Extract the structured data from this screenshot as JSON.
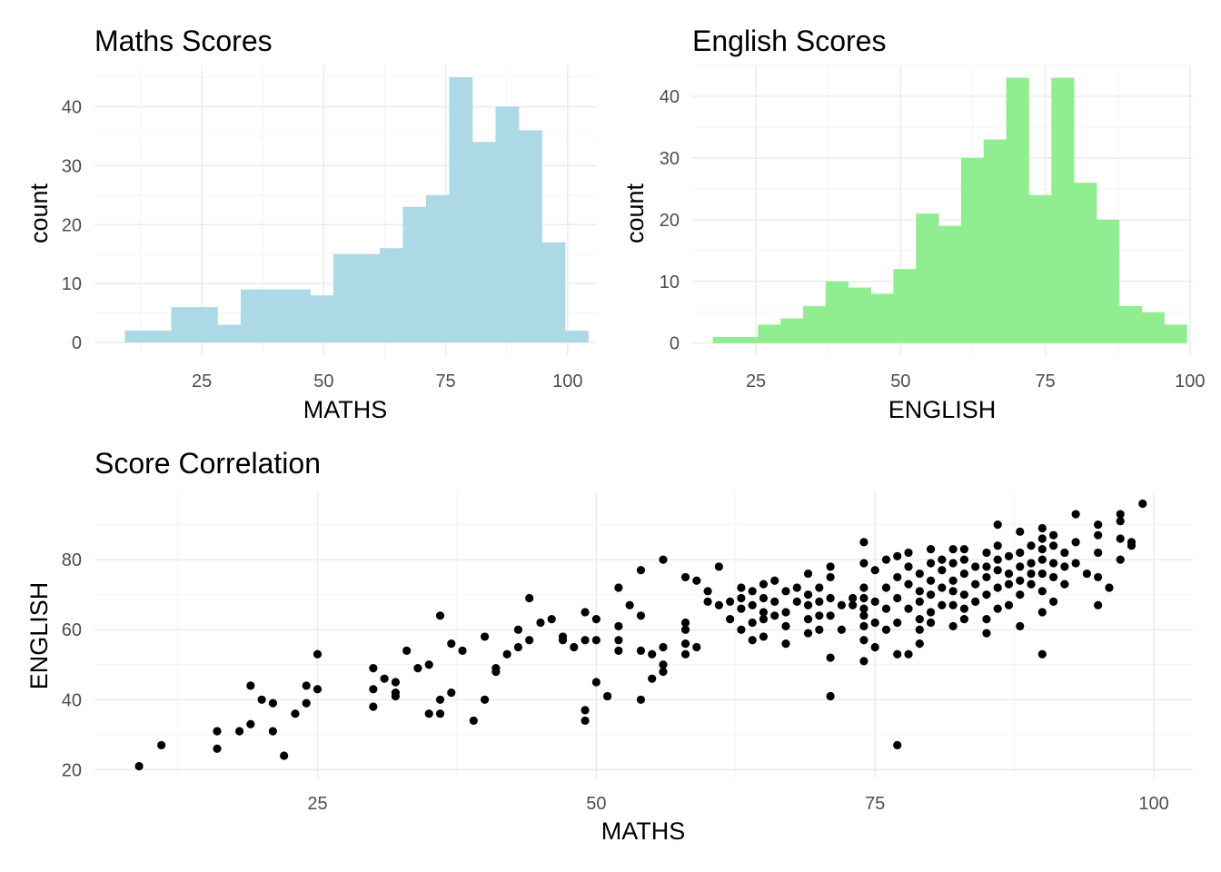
{
  "chart_data": [
    {
      "type": "bar",
      "title": "Maths Scores",
      "xlabel": "MATHS",
      "ylabel": "count",
      "fill": "#ADD8E6",
      "xlim": [
        3,
        106
      ],
      "ylim": [
        -2.3,
        47
      ],
      "xticks": [
        25,
        50,
        75,
        100
      ],
      "yticks": [
        0,
        10,
        20,
        30,
        40
      ],
      "grid": true,
      "bin_width": 4.75,
      "bin_centers": [
        11.6,
        16.35,
        21.1,
        25.85,
        30.6,
        35.35,
        40.1,
        44.85,
        49.6,
        54.35,
        59.1,
        63.85,
        68.6,
        73.35,
        78.1,
        82.85,
        87.6,
        92.35,
        97.1,
        101.85
      ],
      "values": [
        2,
        2,
        6,
        6,
        3,
        9,
        9,
        9,
        8,
        15,
        15,
        16,
        23,
        25,
        45,
        34,
        40,
        36,
        17,
        2
      ]
    },
    {
      "type": "bar",
      "title": "English Scores",
      "xlabel": "ENGLISH",
      "ylabel": "count",
      "fill": "#90EE90",
      "xlim": [
        14,
        100.5
      ],
      "ylim": [
        -2.1,
        45
      ],
      "xticks": [
        25,
        50,
        75,
        100
      ],
      "yticks": [
        0,
        10,
        20,
        30,
        40
      ],
      "grid": true,
      "bin_width": 3.9,
      "bin_centers": [
        19.5,
        23.4,
        27.3,
        31.2,
        35.1,
        39.0,
        42.9,
        46.8,
        50.7,
        54.6,
        58.5,
        62.4,
        66.3,
        70.2,
        74.1,
        78.0,
        81.9,
        85.8,
        89.7,
        93.6,
        97.5
      ],
      "values": [
        1,
        1,
        3,
        4,
        6,
        10,
        9,
        8,
        12,
        21,
        19,
        30,
        33,
        43,
        24,
        43,
        26,
        20,
        6,
        5,
        3
      ]
    },
    {
      "type": "scatter",
      "title": "Score Correlation",
      "xlabel": "MATHS",
      "ylabel": "ENGLISH",
      "point_color": "#000000",
      "xlim": [
        5,
        103.5
      ],
      "ylim": [
        17.5,
        99.5
      ],
      "xticks": [
        25,
        50,
        75,
        100
      ],
      "yticks": [
        20,
        40,
        60,
        80
      ],
      "grid": true,
      "points": [
        [
          9,
          21
        ],
        [
          11,
          27
        ],
        [
          16,
          31
        ],
        [
          16,
          26
        ],
        [
          18,
          31
        ],
        [
          19,
          33
        ],
        [
          19,
          44
        ],
        [
          20,
          40
        ],
        [
          21,
          31
        ],
        [
          21,
          39
        ],
        [
          22,
          24
        ],
        [
          23,
          36
        ],
        [
          24,
          39
        ],
        [
          24,
          44
        ],
        [
          25,
          43
        ],
        [
          25,
          53
        ],
        [
          30,
          38
        ],
        [
          30,
          43
        ],
        [
          30,
          49
        ],
        [
          31,
          46
        ],
        [
          32,
          41
        ],
        [
          32,
          42
        ],
        [
          32,
          45
        ],
        [
          33,
          54
        ],
        [
          34,
          49
        ],
        [
          35,
          36
        ],
        [
          35,
          50
        ],
        [
          36,
          36
        ],
        [
          36,
          40
        ],
        [
          36,
          64
        ],
        [
          37,
          42
        ],
        [
          37,
          56
        ],
        [
          38,
          54
        ],
        [
          39,
          34
        ],
        [
          40,
          40
        ],
        [
          40,
          58
        ],
        [
          41,
          48
        ],
        [
          41,
          49
        ],
        [
          42,
          53
        ],
        [
          43,
          55
        ],
        [
          43,
          60
        ],
        [
          44,
          57
        ],
        [
          44,
          69
        ],
        [
          45,
          62
        ],
        [
          46,
          63
        ],
        [
          47,
          57
        ],
        [
          47,
          58
        ],
        [
          48,
          55
        ],
        [
          49,
          34
        ],
        [
          49,
          37
        ],
        [
          49,
          57
        ],
        [
          49,
          65
        ],
        [
          50,
          45
        ],
        [
          50,
          57
        ],
        [
          50,
          63
        ],
        [
          51,
          41
        ],
        [
          52,
          54
        ],
        [
          52,
          57
        ],
        [
          52,
          61
        ],
        [
          52,
          72
        ],
        [
          53,
          67
        ],
        [
          54,
          40
        ],
        [
          54,
          54
        ],
        [
          54,
          64
        ],
        [
          54,
          77
        ],
        [
          55,
          46
        ],
        [
          55,
          53
        ],
        [
          56,
          48
        ],
        [
          56,
          50
        ],
        [
          56,
          55
        ],
        [
          56,
          80
        ],
        [
          58,
          53
        ],
        [
          58,
          56
        ],
        [
          58,
          60
        ],
        [
          58,
          62
        ],
        [
          58,
          75
        ],
        [
          59,
          55
        ],
        [
          59,
          74
        ],
        [
          60,
          71
        ],
        [
          60,
          68
        ],
        [
          61,
          67
        ],
        [
          61,
          78
        ],
        [
          62,
          63
        ],
        [
          62,
          68
        ],
        [
          63,
          60
        ],
        [
          63,
          66
        ],
        [
          63,
          69
        ],
        [
          63,
          72
        ],
        [
          64,
          57
        ],
        [
          64,
          62
        ],
        [
          64,
          67
        ],
        [
          64,
          71
        ],
        [
          65,
          58
        ],
        [
          65,
          63
        ],
        [
          65,
          65
        ],
        [
          65,
          69
        ],
        [
          65,
          73
        ],
        [
          66,
          64
        ],
        [
          66,
          68
        ],
        [
          66,
          74
        ],
        [
          67,
          56
        ],
        [
          67,
          61
        ],
        [
          67,
          65
        ],
        [
          67,
          71
        ],
        [
          68,
          68
        ],
        [
          68,
          72
        ],
        [
          69,
          59
        ],
        [
          69,
          63
        ],
        [
          69,
          67
        ],
        [
          69,
          70
        ],
        [
          69,
          76
        ],
        [
          70,
          60
        ],
        [
          70,
          64
        ],
        [
          70,
          68
        ],
        [
          70,
          72
        ],
        [
          71,
          41
        ],
        [
          71,
          52
        ],
        [
          71,
          64
        ],
        [
          71,
          69
        ],
        [
          71,
          75
        ],
        [
          71,
          78
        ],
        [
          72,
          60
        ],
        [
          72,
          67
        ],
        [
          73,
          67
        ],
        [
          73,
          69
        ],
        [
          74,
          51
        ],
        [
          74,
          57
        ],
        [
          74,
          61
        ],
        [
          74,
          64
        ],
        [
          74,
          66
        ],
        [
          74,
          69
        ],
        [
          74,
          72
        ],
        [
          74,
          79
        ],
        [
          74,
          85
        ],
        [
          75,
          55
        ],
        [
          75,
          62
        ],
        [
          75,
          68
        ],
        [
          75,
          77
        ],
        [
          76,
          60
        ],
        [
          76,
          66
        ],
        [
          76,
          72
        ],
        [
          76,
          80
        ],
        [
          77,
          27
        ],
        [
          77,
          53
        ],
        [
          77,
          62
        ],
        [
          77,
          69
        ],
        [
          77,
          75
        ],
        [
          77,
          81
        ],
        [
          78,
          53
        ],
        [
          78,
          66
        ],
        [
          78,
          73
        ],
        [
          78,
          78
        ],
        [
          78,
          82
        ],
        [
          79,
          56
        ],
        [
          79,
          60
        ],
        [
          79,
          63
        ],
        [
          79,
          68
        ],
        [
          79,
          71
        ],
        [
          79,
          76
        ],
        [
          80,
          62
        ],
        [
          80,
          65
        ],
        [
          80,
          70
        ],
        [
          80,
          74
        ],
        [
          80,
          79
        ],
        [
          80,
          83
        ],
        [
          81,
          67
        ],
        [
          81,
          72
        ],
        [
          81,
          77
        ],
        [
          81,
          80
        ],
        [
          82,
          61
        ],
        [
          82,
          67
        ],
        [
          82,
          71
        ],
        [
          82,
          74
        ],
        [
          82,
          79
        ],
        [
          82,
          83
        ],
        [
          83,
          63
        ],
        [
          83,
          66
        ],
        [
          83,
          70
        ],
        [
          83,
          76
        ],
        [
          83,
          80
        ],
        [
          83,
          83
        ],
        [
          84,
          68
        ],
        [
          84,
          73
        ],
        [
          84,
          78
        ],
        [
          85,
          59
        ],
        [
          85,
          63
        ],
        [
          85,
          70
        ],
        [
          85,
          75
        ],
        [
          85,
          78
        ],
        [
          85,
          82
        ],
        [
          86,
          66
        ],
        [
          86,
          72
        ],
        [
          86,
          77
        ],
        [
          86,
          80
        ],
        [
          86,
          84
        ],
        [
          86,
          90
        ],
        [
          87,
          67
        ],
        [
          87,
          73
        ],
        [
          87,
          76
        ],
        [
          87,
          81
        ],
        [
          88,
          61
        ],
        [
          88,
          70
        ],
        [
          88,
          74
        ],
        [
          88,
          78
        ],
        [
          88,
          82
        ],
        [
          88,
          88
        ],
        [
          89,
          73
        ],
        [
          89,
          76
        ],
        [
          89,
          79
        ],
        [
          89,
          84
        ],
        [
          90,
          53
        ],
        [
          90,
          65
        ],
        [
          90,
          71
        ],
        [
          90,
          76
        ],
        [
          90,
          80
        ],
        [
          90,
          83
        ],
        [
          90,
          86
        ],
        [
          90,
          89
        ],
        [
          91,
          68
        ],
        [
          91,
          75
        ],
        [
          91,
          79
        ],
        [
          91,
          84
        ],
        [
          91,
          87
        ],
        [
          92,
          73
        ],
        [
          92,
          78
        ],
        [
          92,
          82
        ],
        [
          93,
          79
        ],
        [
          93,
          85
        ],
        [
          93,
          93
        ],
        [
          94,
          76
        ],
        [
          95,
          67
        ],
        [
          95,
          75
        ],
        [
          95,
          82
        ],
        [
          95,
          87
        ],
        [
          95,
          90
        ],
        [
          96,
          72
        ],
        [
          97,
          80
        ],
        [
          97,
          86
        ],
        [
          97,
          91
        ],
        [
          97,
          93
        ],
        [
          98,
          84
        ],
        [
          98,
          85
        ],
        [
          99,
          96
        ]
      ]
    }
  ]
}
